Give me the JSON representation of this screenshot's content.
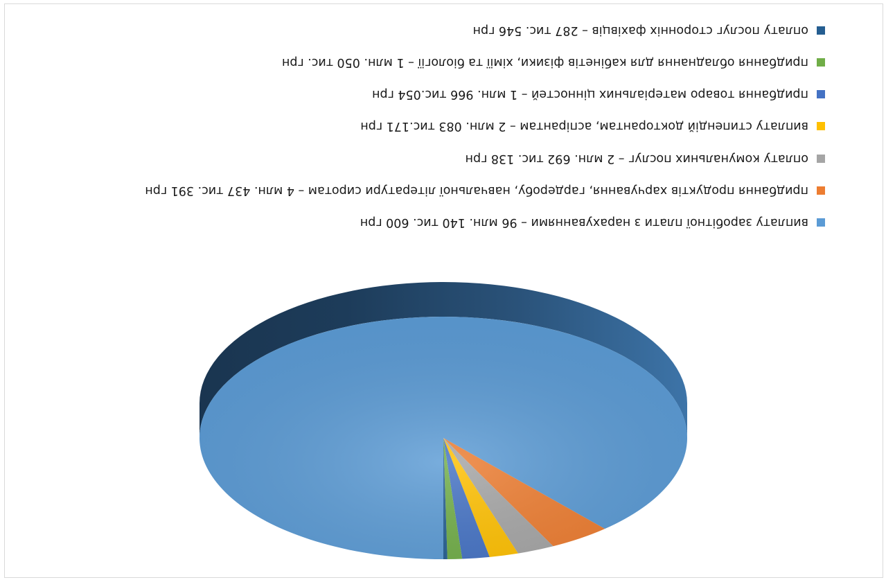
{
  "chart_data": {
    "type": "pie",
    "style": "3d",
    "orientation": "rotated 180°",
    "legend_position": "left",
    "slices": [
      {
        "label": "виплату заробітної плати з нарахуваннями – 96 млн. 140 тис. 600 грн",
        "value": 96140.6,
        "color": "#5B9BD5"
      },
      {
        "label": "придбання продуктів харчування, гардеробу, навчальної літератури сиротам – 4 млн. 437 тис. 391 грн",
        "value": 4437.391,
        "color": "#ED7D31"
      },
      {
        "label": "оплату комунальних послуг – 2 млн. 692 тис. 138 грн",
        "value": 2692.138,
        "color": "#A5A5A5"
      },
      {
        "label": "виплату стипендій докторантам, аспірантам – 2 млн. 083 тис.171 грн",
        "value": 2083.171,
        "color": "#FFC000"
      },
      {
        "label": "придбання товаро матеріальних цінностей – 1 млн. 966 тис.054 грн",
        "value": 1966.054,
        "color": "#4472C4"
      },
      {
        "label": "придбання обладнання для кабінетів фізики, хімії та біології – 1 млн. 050 тис. грн",
        "value": 1050.0,
        "color": "#70AD47"
      },
      {
        "label": "оплату послуг сторонніх фахівців – 287 тис. 546 грн",
        "value": 287.546,
        "color": "#255E91"
      }
    ]
  }
}
